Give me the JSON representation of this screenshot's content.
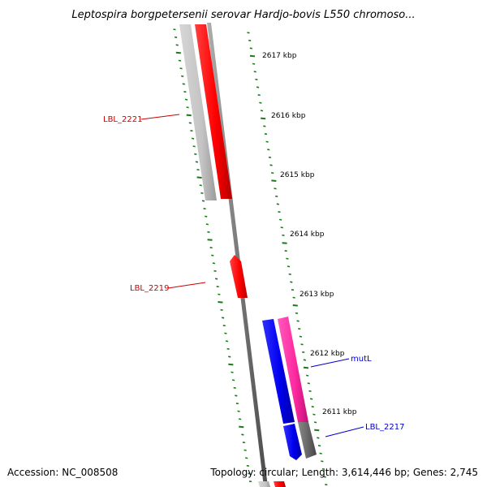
{
  "title": "Leptospira borgpetersenii serovar Hardjo-bovis L550 chromoso...",
  "accession": "Accession: NC_008508",
  "summary": "Topology: circular; Length: 3,614,446 bp; Genes: 2,745",
  "colors": {
    "tick": "#1a7a1a",
    "backbone": "#808080",
    "gene_red": "#ff0000",
    "gene_gray": "#c0c0c0",
    "gene_blue": "#0000ee",
    "gene_pink": "#ff2aa0",
    "gene_dark": "#6b6b6b",
    "label_red": "#cc0000",
    "label_blue": "#0000cc"
  },
  "ruler": [
    {
      "label": "2617 kbp"
    },
    {
      "label": "2616 kbp"
    },
    {
      "label": "2615 kbp"
    },
    {
      "label": "2614 kbp"
    },
    {
      "label": "2613 kbp"
    },
    {
      "label": "2612 kbp"
    },
    {
      "label": "2611 kbp"
    }
  ],
  "genes": {
    "lbl_2221": {
      "label": "LBL_2221"
    },
    "lbl_2219": {
      "label": "LBL_2219"
    },
    "mutl": {
      "label": "mutL"
    },
    "lbl_2217": {
      "label": "LBL_2217"
    }
  }
}
